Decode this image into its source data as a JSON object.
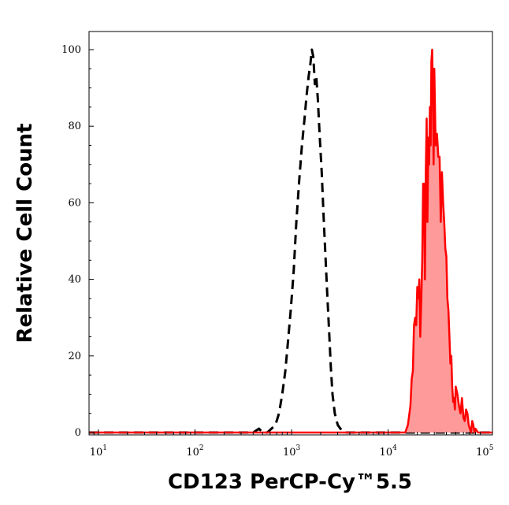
{
  "chart_data": {
    "type": "area",
    "title": "",
    "xlabel": "CD123 PerCP-Cy™5.5",
    "ylabel": "Relative Cell Count",
    "xscale": "log",
    "xlim": [
      8,
      120000
    ],
    "ylim": [
      0,
      105
    ],
    "x_major_ticks": [
      {
        "value": 10,
        "base": "10",
        "exp": "1"
      },
      {
        "value": 100,
        "base": "10",
        "exp": "2"
      },
      {
        "value": 1000,
        "base": "10",
        "exp": "3"
      },
      {
        "value": 10000,
        "base": "10",
        "exp": "4"
      },
      {
        "value": 100000,
        "base": "10",
        "exp": "5"
      }
    ],
    "y_ticks": [
      {
        "value": 0,
        "label": "0"
      },
      {
        "value": 20,
        "label": "20"
      },
      {
        "value": 40,
        "label": "40"
      },
      {
        "value": 60,
        "label": "60"
      },
      {
        "value": 80,
        "label": "80"
      },
      {
        "value": 100,
        "label": "100"
      }
    ],
    "grid": false,
    "series": [
      {
        "style": "dashed",
        "color": "#000000",
        "fill": "none",
        "x": [
          8,
          400,
          460,
          500,
          560,
          620,
          680,
          740,
          800,
          860,
          920,
          980,
          1050,
          1120,
          1200,
          1280,
          1360,
          1430,
          1500,
          1560,
          1620,
          1680,
          1740,
          1800,
          1870,
          1950,
          2050,
          2150,
          2250,
          2350,
          2450,
          2550,
          2650,
          2800,
          3000,
          3200,
          3500,
          4000,
          120000
        ],
        "values": [
          0,
          0,
          1,
          0,
          0,
          1,
          2,
          5,
          10,
          16,
          24,
          32,
          42,
          55,
          66,
          75,
          82,
          88,
          93,
          96,
          100,
          98,
          91,
          93,
          87,
          78,
          68,
          56,
          45,
          35,
          26,
          17,
          10,
          5,
          2,
          1,
          0,
          0,
          0
        ]
      },
      {
        "style": "solid",
        "color": "#ff0000",
        "fill": "#ff9a9a",
        "x": [
          8,
          15000,
          16000,
          17000,
          17500,
          18000,
          18500,
          19000,
          19500,
          20000,
          20500,
          21000,
          21500,
          22000,
          22500,
          23000,
          23500,
          24000,
          24500,
          25000,
          25500,
          26000,
          26500,
          27000,
          27500,
          28000,
          28500,
          29000,
          29500,
          30000,
          31000,
          32000,
          33000,
          34000,
          35000,
          36000,
          37000,
          38000,
          39000,
          40000,
          41000,
          42000,
          43000,
          44000,
          45000,
          46000,
          47000,
          48000,
          49000,
          50000,
          52000,
          54000,
          56000,
          58000,
          60000,
          62000,
          64000,
          66000,
          68000,
          70000,
          72000,
          74000,
          76000,
          78000,
          80000,
          85000,
          90000,
          120000
        ],
        "values": [
          0,
          0,
          2,
          7,
          14,
          16,
          28,
          30,
          28,
          38,
          35,
          40,
          25,
          35,
          45,
          65,
          65,
          40,
          68,
          82,
          55,
          77,
          70,
          85,
          75,
          97,
          100,
          90,
          70,
          95,
          75,
          78,
          72,
          72,
          55,
          68,
          60,
          55,
          48,
          46,
          35,
          32,
          25,
          18,
          20,
          12,
          8,
          9,
          6,
          12,
          10,
          7,
          5,
          9,
          4,
          3,
          6,
          5,
          2,
          1,
          0,
          3,
          2,
          0,
          1,
          0,
          0,
          0
        ]
      }
    ]
  }
}
